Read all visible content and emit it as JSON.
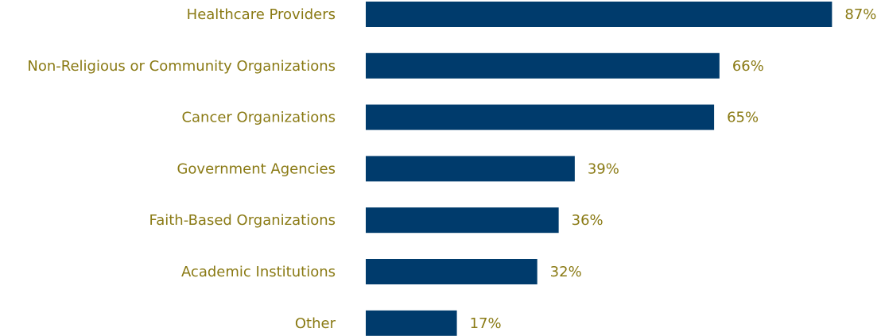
{
  "chart_data": {
    "type": "bar",
    "orientation": "horizontal",
    "categories": [
      "Healthcare Providers",
      "Non-Religious or Community Organizations",
      "Cancer Organizations",
      "Government Agencies",
      "Faith-Based Organizations",
      "Academic Institutions",
      "Other"
    ],
    "values": [
      87,
      66,
      65,
      39,
      36,
      32,
      17
    ],
    "value_labels": [
      "87%",
      "66%",
      "65%",
      "39%",
      "36%",
      "32%",
      "17%"
    ],
    "color": "#003b6c"
  }
}
